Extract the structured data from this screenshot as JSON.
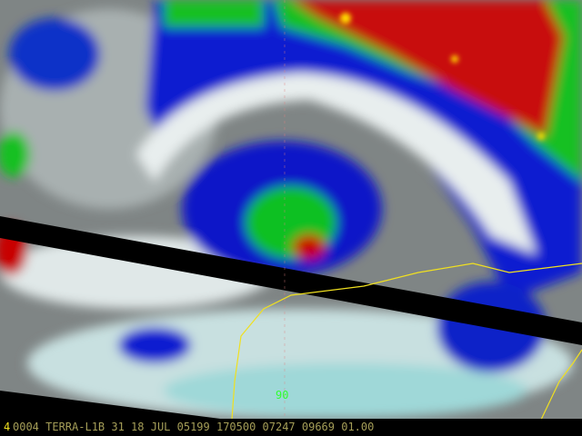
{
  "image": {
    "type": "satellite infrared cloud imagery",
    "colors": {
      "cold_cloud": "#f0f0f0",
      "mid_cloud": "#0018c8",
      "cold_top": "#10c020",
      "coldest_top": "#c80000",
      "coastline": "#f0e020",
      "caption_text": "#a59e58"
    }
  },
  "overlay": {
    "grid_label": "90"
  },
  "caption": {
    "channel_marker": "4",
    "text": "0004 TERRA-L1B 31 18 JUL 05199 170500 07247 09669 01.00"
  }
}
